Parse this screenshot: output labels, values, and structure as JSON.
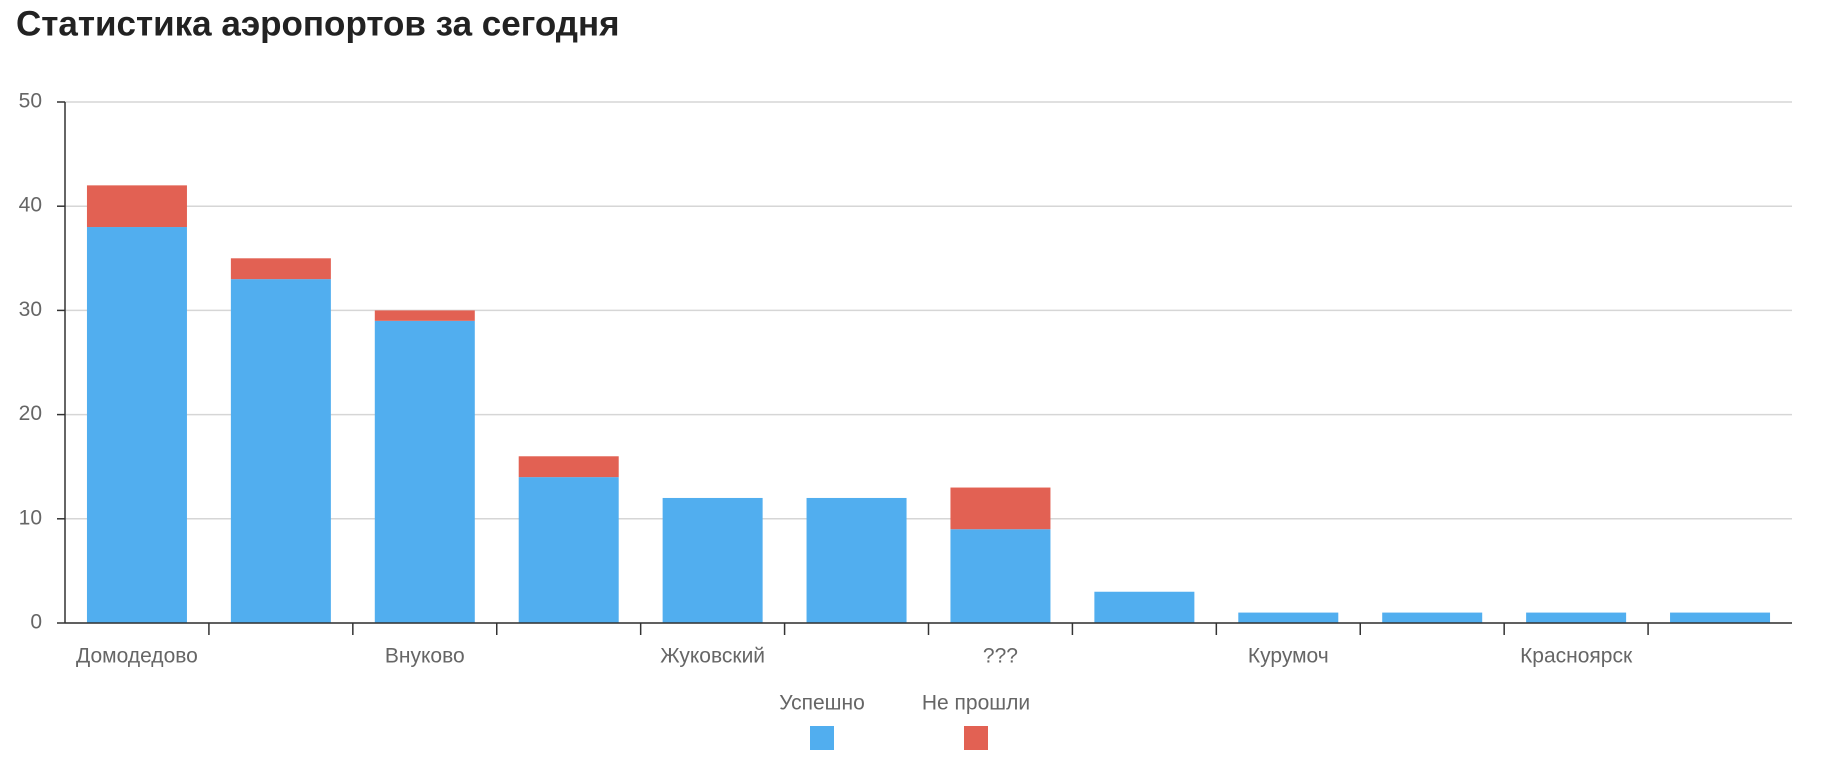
{
  "chart_data": {
    "type": "stacked-bar",
    "title": "Статистика аэропортов за сегодня",
    "categories": [
      "Домодедово",
      null,
      "Внуково",
      null,
      "Жуковский",
      null,
      "???",
      null,
      "Курумоч",
      null,
      "Красноярск",
      null
    ],
    "series": [
      {
        "name": "Успешно",
        "color": "#51aeef",
        "values": [
          38,
          33,
          29,
          14,
          12,
          12,
          9,
          3,
          1,
          1,
          1,
          1
        ]
      },
      {
        "name": "Не прошли",
        "color": "#e26153",
        "values": [
          4,
          2,
          1,
          2,
          0,
          0,
          4,
          0,
          0,
          0,
          0,
          0
        ]
      }
    ],
    "ylim": [
      0,
      50
    ],
    "yticks": [
      0,
      10,
      20,
      30,
      40,
      50
    ],
    "grid": true,
    "legend": "bottom"
  }
}
